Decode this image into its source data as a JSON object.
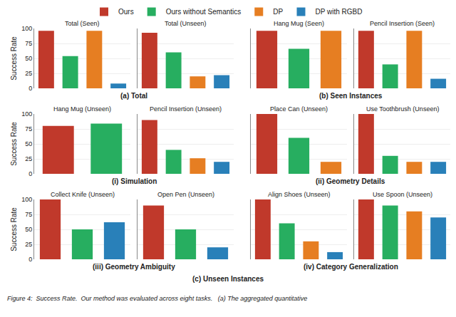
{
  "chart_data": [
    {
      "type": "bar",
      "title": "Total (Seen)",
      "categories": [
        "Ours",
        "Ours without Semantics",
        "DP",
        "DP with RGBD"
      ],
      "values": [
        96,
        54,
        96,
        8
      ],
      "colors": [
        "#c0392b",
        "#27ae60",
        "#e67e22",
        "#2980b9"
      ],
      "ylabel": "Success Rate",
      "ylim": [
        0,
        100
      ],
      "yticks": [
        0,
        25,
        50,
        75,
        100
      ],
      "grid": true,
      "tick_labels": "y"
    },
    {
      "type": "bar",
      "title": "Total (Unseen)",
      "categories": [
        "Ours",
        "Ours without Semantics",
        "DP",
        "DP with RGBD"
      ],
      "values": [
        93,
        60,
        20,
        22
      ],
      "colors": [
        "#c0392b",
        "#27ae60",
        "#e67e22",
        "#2980b9"
      ],
      "ylim": [
        0,
        100
      ],
      "yticks": [
        0,
        25,
        50,
        75,
        100
      ],
      "grid": true,
      "tick_labels": false,
      "legend": "top"
    },
    {
      "type": "bar",
      "title": "Hang Mug (Seen)",
      "categories": [
        "Ours",
        "Ours without Semantics",
        "DP"
      ],
      "values": [
        96,
        66,
        96
      ],
      "colors": [
        "#c0392b",
        "#27ae60",
        "#e67e22"
      ],
      "ylim": [
        0,
        100
      ],
      "yticks": [
        0,
        25,
        50,
        75,
        100
      ],
      "grid": true,
      "tick_labels": false
    },
    {
      "type": "bar",
      "title": "Pencil Insertion (Seen)",
      "categories": [
        "Ours",
        "Ours without Semantics",
        "DP",
        "DP with RGBD"
      ],
      "values": [
        96,
        40,
        96,
        16
      ],
      "colors": [
        "#c0392b",
        "#27ae60",
        "#e67e22",
        "#2980b9"
      ],
      "ylim": [
        0,
        100
      ],
      "yticks": [
        0,
        25,
        50,
        75,
        100
      ],
      "grid": true,
      "tick_labels": false
    },
    {
      "type": "bar",
      "title": "Hang Mug (Unseen)",
      "categories": [
        "Ours",
        "Ours without Semantics"
      ],
      "values": [
        80,
        84
      ],
      "colors": [
        "#c0392b",
        "#27ae60"
      ],
      "ylabel": "Success Rate",
      "ylim": [
        0,
        100
      ],
      "yticks": [
        0,
        25,
        50,
        75,
        100
      ],
      "grid": true,
      "tick_labels": "y"
    },
    {
      "type": "bar",
      "title": "Pencil Insertion (Unseen)",
      "categories": [
        "Ours",
        "Ours without Semantics",
        "DP",
        "DP with RGBD"
      ],
      "values": [
        90,
        40,
        26,
        20
      ],
      "colors": [
        "#c0392b",
        "#27ae60",
        "#e67e22",
        "#2980b9"
      ],
      "ylim": [
        0,
        100
      ],
      "yticks": [
        0,
        25,
        50,
        75,
        100
      ],
      "grid": true,
      "tick_labels": false
    },
    {
      "type": "bar",
      "title": "Place Can (Unseen)",
      "categories": [
        "Ours",
        "Ours without Semantics",
        "DP"
      ],
      "values": [
        100,
        60,
        20
      ],
      "colors": [
        "#c0392b",
        "#27ae60",
        "#e67e22"
      ],
      "ylim": [
        0,
        100
      ],
      "yticks": [
        0,
        25,
        50,
        75,
        100
      ],
      "grid": true,
      "tick_labels": false
    },
    {
      "type": "bar",
      "title": "Use Toothbrush (Unseen)",
      "categories": [
        "Ours",
        "Ours without Semantics",
        "DP",
        "DP with RGBD"
      ],
      "values": [
        100,
        30,
        20,
        20
      ],
      "colors": [
        "#c0392b",
        "#27ae60",
        "#e67e22",
        "#2980b9"
      ],
      "ylim": [
        0,
        100
      ],
      "yticks": [
        0,
        25,
        50,
        75,
        100
      ],
      "grid": true,
      "tick_labels": false
    },
    {
      "type": "bar",
      "title": "Collect Knife (Unseen)",
      "categories": [
        "Ours",
        "Ours without Semantics",
        "DP with RGBD"
      ],
      "values": [
        100,
        50,
        62
      ],
      "colors": [
        "#c0392b",
        "#27ae60",
        "#2980b9"
      ],
      "ylabel": "Success Rate",
      "ylim": [
        0,
        100
      ],
      "yticks": [
        0,
        25,
        50,
        75,
        100
      ],
      "grid": true,
      "tick_labels": "y"
    },
    {
      "type": "bar",
      "title": "Open Pen (Unseen)",
      "categories": [
        "Ours",
        "Ours without Semantics",
        "DP with RGBD"
      ],
      "values": [
        90,
        50,
        20
      ],
      "colors": [
        "#c0392b",
        "#27ae60",
        "#2980b9"
      ],
      "ylim": [
        0,
        100
      ],
      "yticks": [
        0,
        25,
        50,
        75,
        100
      ],
      "grid": true,
      "tick_labels": false
    },
    {
      "type": "bar",
      "title": "Align Shoes (Unseen)",
      "categories": [
        "Ours",
        "Ours without Semantics",
        "DP",
        "DP with RGBD"
      ],
      "values": [
        100,
        60,
        30,
        12
      ],
      "colors": [
        "#c0392b",
        "#27ae60",
        "#e67e22",
        "#2980b9"
      ],
      "ylim": [
        0,
        100
      ],
      "yticks": [
        0,
        25,
        50,
        75,
        100
      ],
      "grid": true,
      "tick_labels": false
    },
    {
      "type": "bar",
      "title": "Use Spoon (Unseen)",
      "categories": [
        "Ours",
        "Ours without Semantics",
        "DP",
        "DP with RGBD"
      ],
      "values": [
        100,
        90,
        80,
        70
      ],
      "colors": [
        "#c0392b",
        "#27ae60",
        "#e67e22",
        "#2980b9"
      ],
      "ylim": [
        0,
        100
      ],
      "yticks": [
        0,
        25,
        50,
        75,
        100
      ],
      "grid": true,
      "tick_labels": false
    }
  ],
  "annotations": [
    "(a) Total",
    "(b) Seen Instances",
    "(i) Simulation",
    "(ii) Geometry Details",
    "(iii) Geometry Ambiguity",
    "(iv) Category Generalization",
    "(c) Unseen Instances",
    "Figure 4:  Success Rate.  Our method was evaluated across eight tasks.   (a) The aggregated quantitative"
  ]
}
